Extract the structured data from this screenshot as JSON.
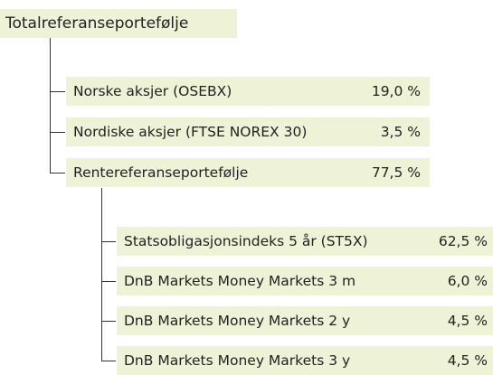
{
  "root": {
    "label": "Totalreferanseportefølje"
  },
  "nodes": [
    {
      "label": "Norske aksjer (OSEBX)",
      "value": "19,0 %"
    },
    {
      "label": "Nordiske aksjer (FTSE NOREX 30)",
      "value": "3,5 %"
    },
    {
      "label": "Rentereferanseportefølje",
      "value": "77,5 %",
      "children": [
        {
          "label": "Statsobligasjonsindeks 5 år (ST5X)",
          "value": "62,5 %"
        },
        {
          "label": "DnB Markets Money Markets 3 m",
          "value": "6,0 %"
        },
        {
          "label": "DnB Markets Money Markets 2 y",
          "value": "4,5 %"
        },
        {
          "label": "DnB Markets Money Markets 3 y",
          "value": "4,5 %"
        }
      ]
    }
  ]
}
